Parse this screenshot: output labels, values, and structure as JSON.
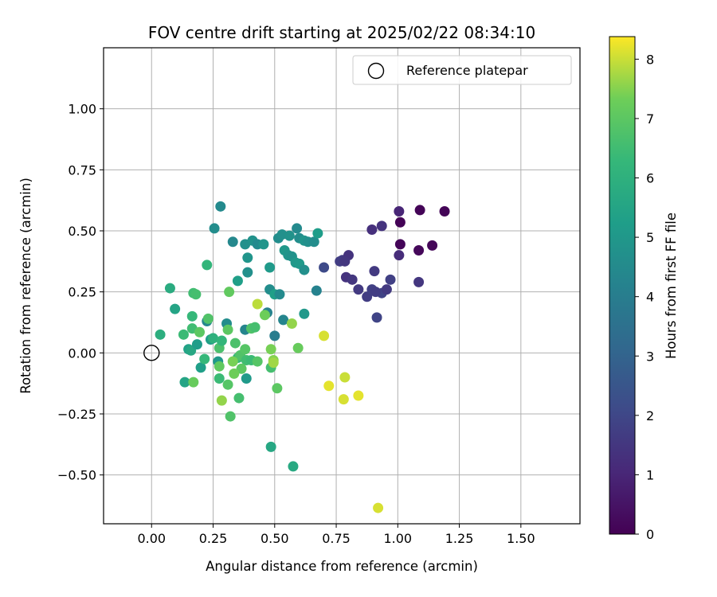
{
  "chart_data": {
    "type": "scatter",
    "title": "FOV centre drift starting at 2025/02/22 08:34:10",
    "xlabel": "Angular distance from reference (arcmin)",
    "ylabel": "Rotation from reference (arcmin)",
    "xlim": [
      -0.195,
      1.74
    ],
    "ylim": [
      -0.7,
      1.25
    ],
    "x_ticks": [
      0.0,
      0.25,
      0.5,
      0.75,
      1.0,
      1.25,
      1.5
    ],
    "x_tick_labels": [
      "0.00",
      "0.25",
      "0.50",
      "0.75",
      "1.00",
      "1.25",
      "1.50"
    ],
    "y_ticks": [
      -0.5,
      -0.25,
      0.0,
      0.25,
      0.5,
      0.75,
      1.0
    ],
    "y_tick_labels": [
      "−0.50",
      "−0.25",
      "0.00",
      "0.25",
      "0.50",
      "0.75",
      "1.00"
    ],
    "grid": true,
    "legend": {
      "position": "top-right",
      "entries": [
        {
          "label": "Reference platepar",
          "marker": "open-circle"
        }
      ]
    },
    "reference_point": {
      "x": 0.0,
      "y": 0.0
    },
    "colorbar": {
      "label": "Hours from first FF file",
      "colormap": "viridis",
      "range": [
        0,
        8.38
      ],
      "ticks": [
        0,
        1,
        2,
        3,
        4,
        5,
        6,
        7,
        8
      ],
      "tick_labels": [
        "0",
        "1",
        "2",
        "3",
        "4",
        "5",
        "6",
        "7",
        "8"
      ]
    },
    "points": [
      {
        "x": 1.01,
        "y": 0.535,
        "h": 0.05
      },
      {
        "x": 1.09,
        "y": 0.585,
        "h": 0.08
      },
      {
        "x": 1.19,
        "y": 0.58,
        "h": 0.1
      },
      {
        "x": 1.01,
        "y": 0.445,
        "h": 0.12
      },
      {
        "x": 1.14,
        "y": 0.44,
        "h": 0.15
      },
      {
        "x": 1.085,
        "y": 0.42,
        "h": 0.18
      },
      {
        "x": 1.005,
        "y": 0.58,
        "h": 1.0
      },
      {
        "x": 0.895,
        "y": 0.505,
        "h": 1.3
      },
      {
        "x": 0.935,
        "y": 0.52,
        "h": 1.4
      },
      {
        "x": 1.005,
        "y": 0.4,
        "h": 1.2
      },
      {
        "x": 1.085,
        "y": 0.29,
        "h": 1.5
      },
      {
        "x": 0.775,
        "y": 0.38,
        "h": 1.6
      },
      {
        "x": 0.8,
        "y": 0.4,
        "h": 1.4
      },
      {
        "x": 0.765,
        "y": 0.375,
        "h": 1.7
      },
      {
        "x": 0.785,
        "y": 0.375,
        "h": 1.5
      },
      {
        "x": 0.79,
        "y": 0.31,
        "h": 1.4
      },
      {
        "x": 0.815,
        "y": 0.3,
        "h": 1.5
      },
      {
        "x": 0.84,
        "y": 0.26,
        "h": 1.6
      },
      {
        "x": 0.875,
        "y": 0.23,
        "h": 1.7
      },
      {
        "x": 0.905,
        "y": 0.335,
        "h": 1.6
      },
      {
        "x": 0.895,
        "y": 0.26,
        "h": 1.8
      },
      {
        "x": 0.935,
        "y": 0.245,
        "h": 1.9
      },
      {
        "x": 0.955,
        "y": 0.26,
        "h": 1.6
      },
      {
        "x": 0.97,
        "y": 0.3,
        "h": 1.8
      },
      {
        "x": 0.915,
        "y": 0.145,
        "h": 1.9
      },
      {
        "x": 0.7,
        "y": 0.35,
        "h": 2.1
      },
      {
        "x": 0.91,
        "y": 0.25,
        "h": 1.7
      },
      {
        "x": 0.28,
        "y": 0.6,
        "h": 4.5
      },
      {
        "x": 0.255,
        "y": 0.51,
        "h": 4.6
      },
      {
        "x": 0.33,
        "y": 0.455,
        "h": 4.4
      },
      {
        "x": 0.38,
        "y": 0.445,
        "h": 4.7
      },
      {
        "x": 0.41,
        "y": 0.46,
        "h": 4.8
      },
      {
        "x": 0.43,
        "y": 0.445,
        "h": 4.5
      },
      {
        "x": 0.455,
        "y": 0.445,
        "h": 4.9
      },
      {
        "x": 0.515,
        "y": 0.47,
        "h": 4.6
      },
      {
        "x": 0.53,
        "y": 0.485,
        "h": 4.7
      },
      {
        "x": 0.56,
        "y": 0.48,
        "h": 4.8
      },
      {
        "x": 0.59,
        "y": 0.51,
        "h": 4.5
      },
      {
        "x": 0.6,
        "y": 0.47,
        "h": 4.6
      },
      {
        "x": 0.62,
        "y": 0.46,
        "h": 4.9
      },
      {
        "x": 0.635,
        "y": 0.455,
        "h": 4.7
      },
      {
        "x": 0.66,
        "y": 0.455,
        "h": 4.6
      },
      {
        "x": 0.675,
        "y": 0.49,
        "h": 5.2
      },
      {
        "x": 0.54,
        "y": 0.42,
        "h": 5.0
      },
      {
        "x": 0.555,
        "y": 0.4,
        "h": 4.9
      },
      {
        "x": 0.57,
        "y": 0.395,
        "h": 4.8
      },
      {
        "x": 0.585,
        "y": 0.37,
        "h": 5.0
      },
      {
        "x": 0.6,
        "y": 0.365,
        "h": 5.1
      },
      {
        "x": 0.62,
        "y": 0.34,
        "h": 4.7
      },
      {
        "x": 0.39,
        "y": 0.39,
        "h": 4.9
      },
      {
        "x": 0.39,
        "y": 0.33,
        "h": 4.7
      },
      {
        "x": 0.35,
        "y": 0.295,
        "h": 5.3
      },
      {
        "x": 0.48,
        "y": 0.35,
        "h": 5.1
      },
      {
        "x": 0.48,
        "y": 0.26,
        "h": 4.6
      },
      {
        "x": 0.5,
        "y": 0.24,
        "h": 5.3
      },
      {
        "x": 0.52,
        "y": 0.24,
        "h": 4.5
      },
      {
        "x": 0.67,
        "y": 0.255,
        "h": 4.2
      },
      {
        "x": 0.62,
        "y": 0.16,
        "h": 5.0
      },
      {
        "x": 0.535,
        "y": 0.135,
        "h": 4.3
      },
      {
        "x": 0.47,
        "y": 0.165,
        "h": 4.2
      },
      {
        "x": 0.5,
        "y": 0.07,
        "h": 4.0
      },
      {
        "x": 0.38,
        "y": 0.095,
        "h": 4.3
      },
      {
        "x": 0.305,
        "y": 0.12,
        "h": 4.6
      },
      {
        "x": 0.225,
        "y": 0.13,
        "h": 4.4
      },
      {
        "x": 0.225,
        "y": 0.36,
        "h": 6.2
      },
      {
        "x": 0.075,
        "y": 0.265,
        "h": 5.8
      },
      {
        "x": 0.095,
        "y": 0.18,
        "h": 5.5
      },
      {
        "x": 0.17,
        "y": 0.245,
        "h": 6.5
      },
      {
        "x": 0.18,
        "y": 0.24,
        "h": 6.6
      },
      {
        "x": 0.15,
        "y": 0.015,
        "h": 5.4
      },
      {
        "x": 0.16,
        "y": 0.01,
        "h": 5.6
      },
      {
        "x": 0.185,
        "y": 0.035,
        "h": 5.2
      },
      {
        "x": 0.035,
        "y": 0.075,
        "h": 5.9
      },
      {
        "x": 0.13,
        "y": 0.075,
        "h": 6.4
      },
      {
        "x": 0.165,
        "y": 0.15,
        "h": 6.3
      },
      {
        "x": 0.165,
        "y": 0.1,
        "h": 6.5
      },
      {
        "x": 0.195,
        "y": 0.085,
        "h": 7.0
      },
      {
        "x": 0.23,
        "y": 0.14,
        "h": 6.8
      },
      {
        "x": 0.24,
        "y": 0.055,
        "h": 5.3
      },
      {
        "x": 0.25,
        "y": 0.06,
        "h": 6.0
      },
      {
        "x": 0.275,
        "y": 0.02,
        "h": 6.7
      },
      {
        "x": 0.285,
        "y": 0.05,
        "h": 6.2
      },
      {
        "x": 0.31,
        "y": 0.095,
        "h": 7.0
      },
      {
        "x": 0.34,
        "y": 0.04,
        "h": 6.7
      },
      {
        "x": 0.315,
        "y": 0.25,
        "h": 7.1
      },
      {
        "x": 0.35,
        "y": -0.02,
        "h": 6.3
      },
      {
        "x": 0.36,
        "y": -0.01,
        "h": 6.8
      },
      {
        "x": 0.38,
        "y": 0.015,
        "h": 6.9
      },
      {
        "x": 0.385,
        "y": -0.03,
        "h": 6.5
      },
      {
        "x": 0.405,
        "y": -0.03,
        "h": 6.4
      },
      {
        "x": 0.405,
        "y": 0.1,
        "h": 6.8
      },
      {
        "x": 0.42,
        "y": 0.105,
        "h": 6.6
      },
      {
        "x": 0.43,
        "y": -0.035,
        "h": 6.9
      },
      {
        "x": 0.365,
        "y": -0.065,
        "h": 7.0
      },
      {
        "x": 0.27,
        "y": -0.035,
        "h": 5.0
      },
      {
        "x": 0.2,
        "y": -0.06,
        "h": 5.3
      },
      {
        "x": 0.215,
        "y": -0.025,
        "h": 6.3
      },
      {
        "x": 0.275,
        "y": -0.055,
        "h": 7.1
      },
      {
        "x": 0.33,
        "y": -0.035,
        "h": 7.4
      },
      {
        "x": 0.335,
        "y": -0.085,
        "h": 7.3
      },
      {
        "x": 0.31,
        "y": -0.13,
        "h": 6.9
      },
      {
        "x": 0.275,
        "y": -0.105,
        "h": 6.4
      },
      {
        "x": 0.355,
        "y": -0.185,
        "h": 6.6
      },
      {
        "x": 0.385,
        "y": -0.105,
        "h": 5.1
      },
      {
        "x": 0.135,
        "y": -0.12,
        "h": 5.5
      },
      {
        "x": 0.17,
        "y": -0.12,
        "h": 7.2
      },
      {
        "x": 0.285,
        "y": -0.195,
        "h": 7.6
      },
      {
        "x": 0.32,
        "y": -0.26,
        "h": 6.8
      },
      {
        "x": 0.485,
        "y": -0.385,
        "h": 5.6
      },
      {
        "x": 0.575,
        "y": -0.465,
        "h": 5.7
      },
      {
        "x": 0.51,
        "y": -0.145,
        "h": 7.0
      },
      {
        "x": 0.485,
        "y": -0.06,
        "h": 6.6
      },
      {
        "x": 0.485,
        "y": 0.015,
        "h": 7.4
      },
      {
        "x": 0.495,
        "y": -0.03,
        "h": 7.5
      },
      {
        "x": 0.495,
        "y": -0.04,
        "h": 7.7
      },
      {
        "x": 0.46,
        "y": 0.155,
        "h": 7.3
      },
      {
        "x": 0.43,
        "y": 0.2,
        "h": 7.9
      },
      {
        "x": 0.595,
        "y": 0.02,
        "h": 7.2
      },
      {
        "x": 0.57,
        "y": 0.12,
        "h": 7.6
      },
      {
        "x": 0.7,
        "y": 0.07,
        "h": 8.1
      },
      {
        "x": 0.72,
        "y": -0.135,
        "h": 8.2
      },
      {
        "x": 0.78,
        "y": -0.19,
        "h": 8.1
      },
      {
        "x": 0.785,
        "y": -0.1,
        "h": 8.0
      },
      {
        "x": 0.84,
        "y": -0.175,
        "h": 8.2
      },
      {
        "x": 0.92,
        "y": -0.635,
        "h": 8.1
      }
    ]
  }
}
